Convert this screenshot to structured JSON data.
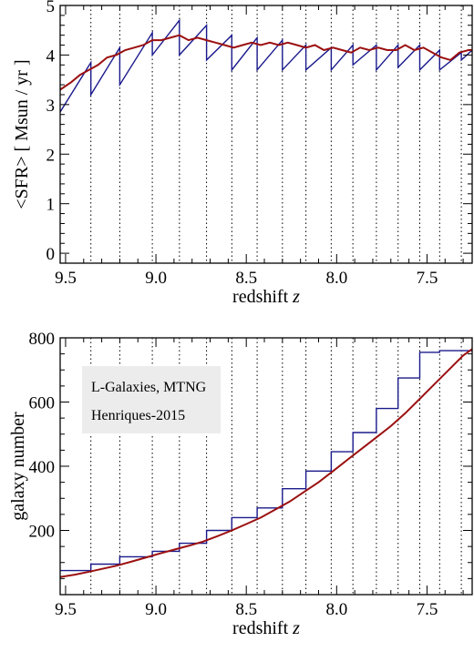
{
  "chart_data": [
    {
      "type": "line",
      "ylabel": "<SFR>  [ Msun / yr ]",
      "xlabel_text": "redshift ",
      "xlabel_var": "z",
      "xlim": [
        9.53,
        7.25
      ],
      "ylim": [
        -0.2,
        5.0
      ],
      "xticks": [
        9.5,
        9.0,
        8.5,
        8.0,
        7.5
      ],
      "xtick_labels": [
        "9.5",
        "9.0",
        "8.5",
        "8.0",
        "7.5"
      ],
      "yticks": [
        0,
        1,
        2,
        3,
        4,
        5
      ],
      "ytick_labels": [
        "0",
        "1",
        "2",
        "3",
        "4",
        "5"
      ],
      "snapshot_lines": [
        9.36,
        9.2,
        9.02,
        8.87,
        8.72,
        8.58,
        8.44,
        8.3,
        8.17,
        8.03,
        7.91,
        7.78,
        7.66,
        7.54,
        7.43,
        7.31
      ],
      "series": [
        {
          "color": "#1a1a8c",
          "x": [
            9.53,
            9.36,
            9.36,
            9.2,
            9.2,
            9.02,
            9.02,
            8.87,
            8.87,
            8.72,
            8.72,
            8.58,
            8.58,
            8.44,
            8.44,
            8.3,
            8.3,
            8.17,
            8.17,
            8.03,
            8.03,
            7.91,
            7.91,
            7.78,
            7.78,
            7.66,
            7.66,
            7.54,
            7.54,
            7.43,
            7.43,
            7.31,
            7.31,
            7.25
          ],
          "y": [
            2.85,
            3.85,
            3.2,
            4.15,
            3.4,
            4.45,
            4.0,
            4.7,
            4.0,
            4.6,
            3.9,
            4.4,
            3.7,
            4.35,
            3.7,
            4.3,
            3.7,
            4.2,
            3.7,
            4.15,
            3.7,
            4.2,
            3.8,
            4.2,
            3.7,
            4.2,
            3.75,
            4.2,
            3.7,
            4.1,
            3.7,
            4.05,
            3.9,
            4.1
          ]
        },
        {
          "color": "#9b1010",
          "x": [
            9.53,
            9.47,
            9.42,
            9.37,
            9.32,
            9.27,
            9.22,
            9.17,
            9.12,
            9.07,
            9.02,
            8.97,
            8.92,
            8.87,
            8.82,
            8.77,
            8.72,
            8.67,
            8.62,
            8.57,
            8.52,
            8.47,
            8.42,
            8.37,
            8.32,
            8.27,
            8.22,
            8.17,
            8.12,
            8.07,
            8.02,
            7.97,
            7.92,
            7.87,
            7.82,
            7.77,
            7.72,
            7.67,
            7.62,
            7.57,
            7.52,
            7.47,
            7.42,
            7.37,
            7.32,
            7.27,
            7.25
          ],
          "y": [
            3.3,
            3.45,
            3.6,
            3.7,
            3.8,
            3.95,
            4.0,
            4.1,
            4.15,
            4.2,
            4.3,
            4.3,
            4.35,
            4.4,
            4.3,
            4.35,
            4.3,
            4.25,
            4.2,
            4.15,
            4.2,
            4.25,
            4.2,
            4.25,
            4.2,
            4.25,
            4.2,
            4.15,
            4.2,
            4.1,
            4.15,
            4.1,
            4.05,
            4.15,
            4.1,
            4.15,
            4.1,
            4.1,
            4.2,
            4.1,
            4.15,
            4.05,
            3.95,
            3.9,
            4.05,
            4.1,
            4.1
          ]
        }
      ]
    },
    {
      "type": "line",
      "ylabel": "galaxy number",
      "xlabel_text": "redshift ",
      "xlabel_var": "z",
      "xlim": [
        9.53,
        7.25
      ],
      "ylim": [
        0,
        800
      ],
      "xticks": [
        9.5,
        9.0,
        8.5,
        8.0,
        7.5
      ],
      "xtick_labels": [
        "9.5",
        "9.0",
        "8.5",
        "8.0",
        "7.5"
      ],
      "yticks": [
        200,
        400,
        600,
        800
      ],
      "ytick_labels": [
        "200",
        "400",
        "600",
        "800"
      ],
      "snapshot_lines": [
        9.36,
        9.2,
        9.02,
        8.87,
        8.72,
        8.58,
        8.44,
        8.3,
        8.17,
        8.03,
        7.91,
        7.78,
        7.66,
        7.54,
        7.43,
        7.31
      ],
      "legend": {
        "entries": [
          {
            "label": "L-Galaxies, MTNG",
            "color": "#9b1010"
          },
          {
            "label": "Henriques-2015",
            "color": "#1a1a8c"
          }
        ]
      },
      "series": [
        {
          "color": "#1a1a8c",
          "x": [
            9.53,
            9.36,
            9.36,
            9.2,
            9.2,
            9.02,
            9.02,
            8.87,
            8.87,
            8.72,
            8.72,
            8.58,
            8.58,
            8.44,
            8.44,
            8.3,
            8.3,
            8.17,
            8.17,
            8.03,
            8.03,
            7.91,
            7.91,
            7.78,
            7.78,
            7.66,
            7.66,
            7.54,
            7.54,
            7.43,
            7.43,
            7.31,
            7.31,
            7.25
          ],
          "y": [
            75,
            75,
            95,
            95,
            118,
            118,
            135,
            135,
            160,
            160,
            200,
            200,
            240,
            240,
            270,
            270,
            330,
            330,
            385,
            385,
            445,
            445,
            505,
            505,
            580,
            580,
            675,
            675,
            755,
            755,
            760,
            760,
            760,
            760
          ]
        },
        {
          "color": "#9b1010",
          "x": [
            9.53,
            9.45,
            9.38,
            9.3,
            9.22,
            9.14,
            9.06,
            8.98,
            8.9,
            8.82,
            8.74,
            8.66,
            8.58,
            8.5,
            8.42,
            8.34,
            8.26,
            8.18,
            8.1,
            8.02,
            7.94,
            7.86,
            7.78,
            7.7,
            7.62,
            7.54,
            7.46,
            7.38,
            7.3,
            7.25
          ],
          "y": [
            55,
            62,
            70,
            80,
            90,
            102,
            115,
            128,
            140,
            152,
            165,
            182,
            200,
            220,
            240,
            265,
            290,
            320,
            350,
            385,
            420,
            455,
            490,
            525,
            565,
            610,
            655,
            700,
            745,
            765
          ]
        }
      ]
    }
  ]
}
